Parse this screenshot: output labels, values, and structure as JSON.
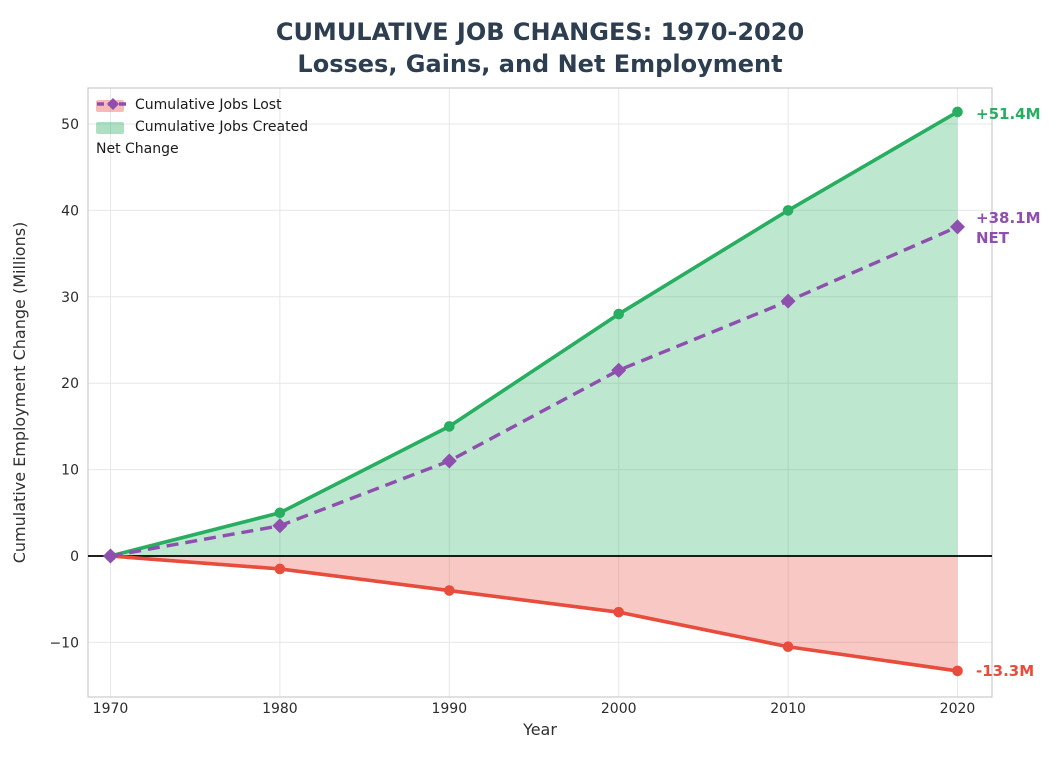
{
  "chart_data": {
    "type": "area",
    "title_lines": [
      "CUMULATIVE JOB CHANGES: 1970-2020",
      "Losses, Gains, and Net Employment"
    ],
    "xlabel": "Year",
    "ylabel": "Cumulative Employment Change (Millions)",
    "x": [
      1970,
      1980,
      1990,
      2000,
      2010,
      2020
    ],
    "x_tick_labels": [
      "1970",
      "1980",
      "1990",
      "2000",
      "2010",
      "2020"
    ],
    "y_ticks": [
      -10,
      0,
      10,
      20,
      30,
      40,
      50
    ],
    "y_tick_labels": [
      "−10",
      "0",
      "10",
      "20",
      "30",
      "40",
      "50"
    ],
    "xlim": [
      1968.7,
      2022.1
    ],
    "ylim": [
      -16.3,
      54.2
    ],
    "grid": true,
    "zero_line": true,
    "legend_position": "upper left",
    "series": [
      {
        "key": "jobs_lost",
        "name": "Cumulative Jobs Lost",
        "kind": "area-line",
        "values": [
          0,
          -1.5,
          -4.0,
          -6.5,
          -10.5,
          -13.3
        ],
        "color": "#e74c3c",
        "fill_alpha": 0.3,
        "marker": "circle",
        "dash": false
      },
      {
        "key": "jobs_created",
        "name": "Cumulative Jobs Created",
        "kind": "area-line",
        "values": [
          0,
          5.0,
          15.0,
          28.0,
          40.0,
          51.4
        ],
        "color": "#27ae60",
        "fill_alpha": 0.3,
        "marker": "circle",
        "dash": false
      },
      {
        "key": "net_change",
        "name": "Net Change",
        "kind": "line",
        "values": [
          0,
          3.5,
          11.0,
          21.5,
          29.5,
          38.1
        ],
        "color": "#8e4fae",
        "fill_alpha": 0,
        "marker": "diamond",
        "dash": true
      }
    ],
    "annotations": [
      {
        "key": "created_end",
        "text": "+51.4M",
        "x": 2020,
        "y": 51.4,
        "color": "#27ae60"
      },
      {
        "key": "net_end",
        "text": "+38.1M",
        "text2": "NET",
        "x": 2020,
        "y": 38.1,
        "color": "#8e4fae"
      },
      {
        "key": "lost_end",
        "text": "-13.3M",
        "x": 2020,
        "y": -13.3,
        "color": "#e74c3c"
      }
    ]
  }
}
